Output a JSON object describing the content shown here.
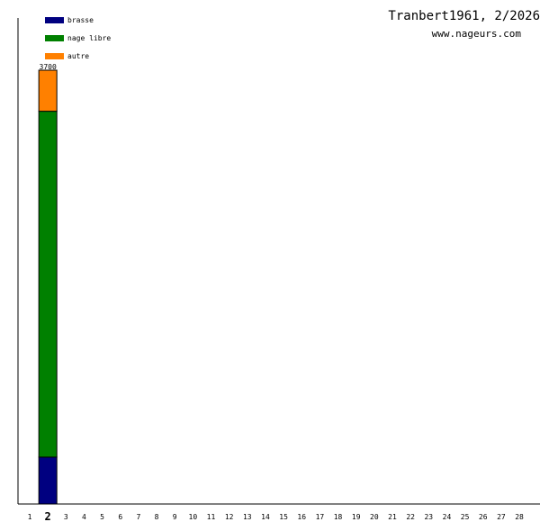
{
  "header": {
    "title": "Tranbert1961, 2/2026",
    "site": "www.nageurs.com"
  },
  "chart_data": {
    "type": "bar",
    "stacked": true,
    "title": "Tranbert1961, 2/2026",
    "xlabel": "",
    "ylabel": "",
    "categories": [
      "1",
      "2",
      "3",
      "4",
      "5",
      "6",
      "7",
      "8",
      "9",
      "10",
      "11",
      "12",
      "13",
      "14",
      "15",
      "16",
      "17",
      "18",
      "19",
      "20",
      "21",
      "22",
      "23",
      "24",
      "25",
      "26",
      "27",
      "28"
    ],
    "highlighted_category": "2",
    "series": [
      {
        "name": "brasse",
        "color": "#000080",
        "values": [
          0,
          400,
          0,
          0,
          0,
          0,
          0,
          0,
          0,
          0,
          0,
          0,
          0,
          0,
          0,
          0,
          0,
          0,
          0,
          0,
          0,
          0,
          0,
          0,
          0,
          0,
          0,
          0
        ]
      },
      {
        "name": "nage libre",
        "color": "#008000",
        "values": [
          0,
          2950,
          0,
          0,
          0,
          0,
          0,
          0,
          0,
          0,
          0,
          0,
          0,
          0,
          0,
          0,
          0,
          0,
          0,
          0,
          0,
          0,
          0,
          0,
          0,
          0,
          0,
          0
        ]
      },
      {
        "name": "autre",
        "color": "#ff8000",
        "values": [
          0,
          350,
          0,
          0,
          0,
          0,
          0,
          0,
          0,
          0,
          0,
          0,
          0,
          0,
          0,
          0,
          0,
          0,
          0,
          0,
          0,
          0,
          0,
          0,
          0,
          0,
          0,
          0
        ]
      }
    ],
    "totals_labels": [
      {
        "category": "2",
        "text": "3700"
      }
    ],
    "ylim": [
      0,
      3700
    ],
    "legend": "top-left",
    "grid": false
  }
}
